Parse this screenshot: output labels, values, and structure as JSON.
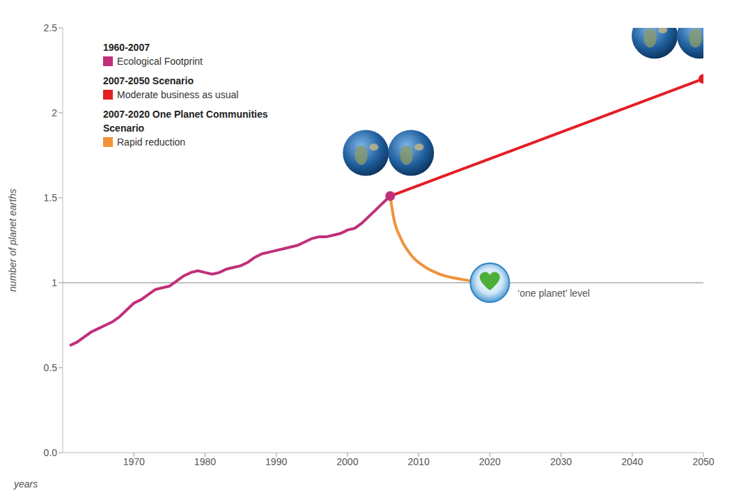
{
  "chart_data": {
    "type": "line",
    "x_label": "years",
    "y_label": "number of planet earths",
    "xlim": [
      1960,
      2050
    ],
    "xticks": [
      1970,
      1980,
      1990,
      2000,
      2010,
      2020,
      2030,
      2040,
      2050
    ],
    "ylim": [
      0,
      2.5
    ],
    "yticks": [
      {
        "value": 0,
        "label": "0.0"
      },
      0.5,
      1,
      1.5,
      2,
      2.5
    ],
    "grid": false,
    "legend": "top-left",
    "reference_line": {
      "value": 1,
      "label": "‘one planet’ level"
    },
    "series": [
      {
        "name": "Ecological Footprint",
        "group": "1960-2007",
        "color": "#c0307a",
        "marker": "end",
        "line_style": "solid",
        "x": [
          1961,
          1962,
          1963,
          1964,
          1965,
          1966,
          1967,
          1968,
          1969,
          1970,
          1971,
          1972,
          1973,
          1974,
          1975,
          1976,
          1977,
          1978,
          1979,
          1980,
          1981,
          1982,
          1983,
          1984,
          1985,
          1986,
          1987,
          1988,
          1989,
          1990,
          1991,
          1992,
          1993,
          1994,
          1995,
          1996,
          1997,
          1998,
          1999,
          2000,
          2001,
          2002,
          2003,
          2004,
          2005,
          2006
        ],
        "values": [
          0.63,
          0.65,
          0.68,
          0.71,
          0.73,
          0.75,
          0.77,
          0.8,
          0.84,
          0.88,
          0.9,
          0.93,
          0.96,
          0.97,
          0.98,
          1.01,
          1.04,
          1.06,
          1.07,
          1.06,
          1.05,
          1.06,
          1.08,
          1.09,
          1.1,
          1.12,
          1.15,
          1.17,
          1.18,
          1.19,
          1.2,
          1.21,
          1.22,
          1.24,
          1.26,
          1.27,
          1.27,
          1.28,
          1.29,
          1.31,
          1.32,
          1.35,
          1.39,
          1.43,
          1.47,
          1.51
        ]
      },
      {
        "name": "Moderate business as usual",
        "group": "2007-2050 Scenario",
        "color": "#e31e24",
        "marker": "end",
        "line_style": "solid",
        "x": [
          2006,
          2050
        ],
        "values": [
          1.51,
          2.2
        ]
      },
      {
        "name": "Rapid reduction",
        "group": "2007-2020 One Planet Communities Scenario",
        "color": "#f0923a",
        "marker": "heart",
        "line_style": "curved",
        "x": [
          2006,
          2006.5,
          2007.5,
          2009,
          2011,
          2013,
          2016,
          2020
        ],
        "values": [
          1.51,
          1.38,
          1.26,
          1.16,
          1.09,
          1.05,
          1.02,
          1.0
        ]
      }
    ]
  }
}
